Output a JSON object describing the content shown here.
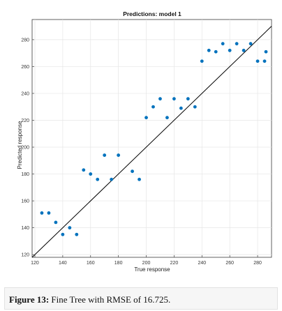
{
  "chart_data": {
    "type": "scatter",
    "title": "Predictions: model 1",
    "xlabel": "True response",
    "ylabel": "Predicted response",
    "xlim": [
      118,
      290
    ],
    "ylim": [
      118,
      295
    ],
    "xticks": [
      120,
      140,
      160,
      180,
      200,
      220,
      240,
      260,
      280
    ],
    "yticks": [
      120,
      140,
      160,
      180,
      200,
      220,
      240,
      260,
      280
    ],
    "grid": true,
    "reference_line": "perfect prediction (y = x)",
    "marker_color": "#0072bd",
    "points": [
      {
        "x": 125,
        "y": 151
      },
      {
        "x": 130,
        "y": 151
      },
      {
        "x": 135,
        "y": 144
      },
      {
        "x": 140,
        "y": 135
      },
      {
        "x": 145,
        "y": 140
      },
      {
        "x": 150,
        "y": 135
      },
      {
        "x": 155,
        "y": 183
      },
      {
        "x": 160,
        "y": 180
      },
      {
        "x": 165,
        "y": 176
      },
      {
        "x": 170,
        "y": 194
      },
      {
        "x": 175,
        "y": 176
      },
      {
        "x": 180,
        "y": 194
      },
      {
        "x": 190,
        "y": 182
      },
      {
        "x": 195,
        "y": 176
      },
      {
        "x": 200,
        "y": 222
      },
      {
        "x": 205,
        "y": 230
      },
      {
        "x": 210,
        "y": 236
      },
      {
        "x": 215,
        "y": 222
      },
      {
        "x": 220,
        "y": 236
      },
      {
        "x": 225,
        "y": 229
      },
      {
        "x": 230,
        "y": 236
      },
      {
        "x": 235,
        "y": 230
      },
      {
        "x": 240,
        "y": 264
      },
      {
        "x": 245,
        "y": 272
      },
      {
        "x": 250,
        "y": 271
      },
      {
        "x": 255,
        "y": 277
      },
      {
        "x": 260,
        "y": 272
      },
      {
        "x": 265,
        "y": 277
      },
      {
        "x": 270,
        "y": 272
      },
      {
        "x": 275,
        "y": 277
      },
      {
        "x": 280,
        "y": 264
      },
      {
        "x": 285,
        "y": 264
      },
      {
        "x": 286,
        "y": 271
      }
    ]
  },
  "caption": {
    "label": "Figure 13:",
    "text": " Fine Tree with RMSE of 16.725."
  }
}
